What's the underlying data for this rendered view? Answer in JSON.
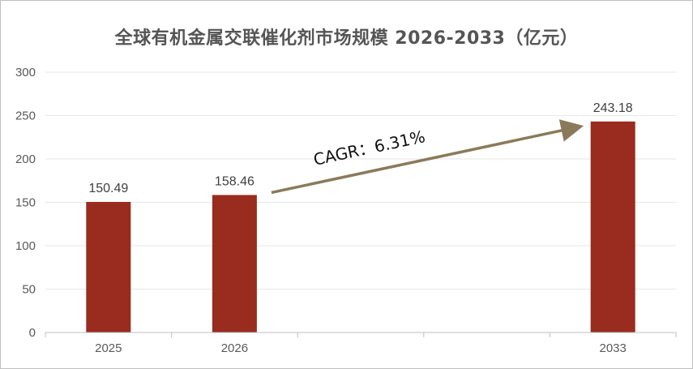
{
  "chart_data": {
    "type": "bar",
    "title": "全球有机金属交联催化剂市场规模 2026-2033（亿元）",
    "xlabel": "",
    "ylabel": "",
    "categories": [
      "2025",
      "2026",
      "",
      "",
      "2033"
    ],
    "values": [
      150.49,
      158.46,
      null,
      null,
      243.18
    ],
    "data_labels": [
      "150.49",
      "158.46",
      "",
      "",
      "243.18"
    ],
    "ylim": [
      0,
      300
    ],
    "yticks": [
      0,
      50,
      100,
      150,
      200,
      250,
      300
    ],
    "grid": true,
    "legend": "none",
    "bar_color": "#9a2b1f",
    "annotation": {
      "text": "CAGR：6.31%",
      "arrow_from": "2026",
      "arrow_to": "2033",
      "arrow_color": "#8b7a5a"
    }
  }
}
